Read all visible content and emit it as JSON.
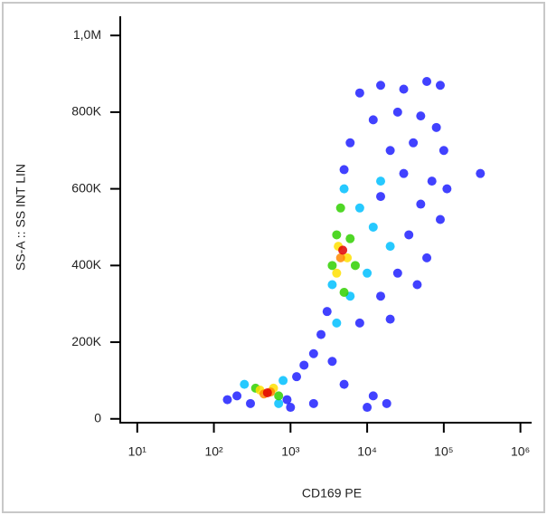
{
  "chart_data": {
    "type": "scatter",
    "x_label": "CD169 PE",
    "y_label": "SS-A :: SS INT LIN",
    "log_x": true,
    "xlim": [
      6,
      1400000
    ],
    "xticks": [
      {
        "value": 10,
        "label": "10¹"
      },
      {
        "value": 100,
        "label": "10²"
      },
      {
        "value": 1000,
        "label": "10³"
      },
      {
        "value": 10000,
        "label": "10⁴"
      },
      {
        "value": 100000,
        "label": "10⁵"
      },
      {
        "value": 1000000,
        "label": "10⁶"
      }
    ],
    "ylim": [
      -10000,
      1050000
    ],
    "yticks": [
      0,
      {
        "value": 200000,
        "label": "200K"
      },
      {
        "value": 400000,
        "label": "400K"
      },
      {
        "value": 600000,
        "label": "600K"
      },
      {
        "value": 800000,
        "label": "800K"
      },
      {
        "value": 1000000,
        "label": "1,0M"
      }
    ],
    "x": [
      8000,
      15000,
      30000,
      60000,
      90000,
      12000,
      25000,
      50000,
      80000,
      6000,
      20000,
      40000,
      100000,
      5000,
      30000,
      70000,
      110000,
      15000,
      50000,
      90000,
      35000,
      60000,
      25000,
      45000,
      15000,
      3000,
      2500,
      2000,
      1500,
      1200,
      3500,
      8000,
      20000,
      300,
      200,
      900,
      12000,
      18000,
      10000,
      150,
      1000,
      5000,
      300000,
      2000,
      5000,
      8000,
      12000,
      20000,
      3500,
      6000,
      10000,
      4000,
      250,
      800,
      700,
      15000,
      4500,
      4000,
      6000,
      3500,
      7000,
      5000,
      350,
      700,
      4200,
      5500,
      4000,
      400,
      600,
      4500,
      450,
      550,
      4800,
      500
    ],
    "y": [
      850000,
      870000,
      860000,
      880000,
      870000,
      780000,
      800000,
      790000,
      760000,
      720000,
      700000,
      720000,
      700000,
      650000,
      640000,
      620000,
      600000,
      580000,
      560000,
      520000,
      480000,
      420000,
      380000,
      350000,
      320000,
      280000,
      220000,
      170000,
      140000,
      110000,
      150000,
      250000,
      260000,
      40000,
      60000,
      50000,
      60000,
      40000,
      30000,
      50000,
      30000,
      90000,
      640000,
      40000,
      600000,
      550000,
      500000,
      450000,
      350000,
      320000,
      380000,
      250000,
      90000,
      100000,
      40000,
      620000,
      550000,
      480000,
      470000,
      400000,
      400000,
      330000,
      80000,
      60000,
      450000,
      420000,
      380000,
      75000,
      80000,
      420000,
      65000,
      70000,
      440000,
      68000
    ],
    "colors": [
      "#2020ff",
      "#2020ff",
      "#2020ff",
      "#2020ff",
      "#2020ff",
      "#2020ff",
      "#2020ff",
      "#2020ff",
      "#2020ff",
      "#2020ff",
      "#2020ff",
      "#2020ff",
      "#2020ff",
      "#2020ff",
      "#2020ff",
      "#2020ff",
      "#2020ff",
      "#2020ff",
      "#2020ff",
      "#2020ff",
      "#2020ff",
      "#2020ff",
      "#2020ff",
      "#2020ff",
      "#2020ff",
      "#2020ff",
      "#2020ff",
      "#2020ff",
      "#2020ff",
      "#2020ff",
      "#2020ff",
      "#2020ff",
      "#2020ff",
      "#2020ff",
      "#2020ff",
      "#2020ff",
      "#2020ff",
      "#2020ff",
      "#2020ff",
      "#2020ff",
      "#2020ff",
      "#2020ff",
      "#2020ff",
      "#2020ff",
      "#00c0ff",
      "#00c0ff",
      "#00c0ff",
      "#00c0ff",
      "#00c0ff",
      "#00c0ff",
      "#00c0ff",
      "#00c0ff",
      "#00c0ff",
      "#00c0ff",
      "#00c0ff",
      "#00c0ff",
      "#30d000",
      "#30d000",
      "#30d000",
      "#30d000",
      "#30d000",
      "#30d000",
      "#30d000",
      "#30d000",
      "#ffe000",
      "#ffe000",
      "#ffe000",
      "#ffe000",
      "#ffe000",
      "#ff8800",
      "#ff8800",
      "#ff8800",
      "#e00000",
      "#e00000"
    ]
  }
}
